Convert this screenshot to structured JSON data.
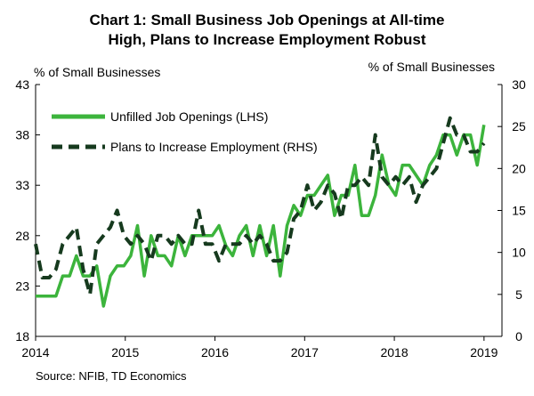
{
  "chart_data": {
    "type": "line",
    "title_lines": [
      "Chart 1: Small Business Job Openings at All-time",
      "High, Plans to Increase Employment Robust"
    ],
    "ylabel_left": "% of Small Businesses",
    "ylabel_right": "% of Small Businesses",
    "source": "Source: NFIB, TD Economics",
    "xlim": [
      2014,
      2019.2
    ],
    "ylim_left": [
      18,
      43
    ],
    "ylim_right": [
      0,
      30
    ],
    "x_ticks": [
      "2014",
      "2015",
      "2016",
      "2017",
      "2018",
      "2019"
    ],
    "y_ticks_left": [
      "18",
      "23",
      "28",
      "33",
      "38",
      "43"
    ],
    "y_ticks_right": [
      "0",
      "5",
      "10",
      "15",
      "20",
      "25",
      "30"
    ],
    "legend": {
      "placement": "top-left",
      "entries": [
        "Unfilled Job Openings (LHS)",
        "Plans to Increase Employment (RHS)"
      ]
    },
    "colors": {
      "job_openings": "#3cb43c",
      "plans": "#163a1e",
      "axis": "#000000"
    },
    "series": [
      {
        "name": "Unfilled Job Openings (LHS)",
        "axis": "left",
        "style": "solid",
        "values": [
          22,
          22,
          22,
          22,
          24,
          24,
          26,
          24,
          24,
          25,
          21,
          24,
          25,
          25,
          26,
          29,
          24,
          28,
          26,
          26,
          25,
          28,
          26,
          28,
          28,
          28,
          28,
          29,
          27,
          26,
          28,
          29,
          26,
          29,
          26,
          29,
          24,
          29,
          31,
          30,
          32,
          32,
          33,
          34,
          30,
          32,
          32,
          35,
          30,
          30,
          32,
          36,
          33,
          32,
          35,
          35,
          34,
          33,
          35,
          36,
          38,
          38,
          36,
          38,
          38,
          35,
          39
        ]
      },
      {
        "name": "Plans to Increase Employment (RHS)",
        "axis": "right",
        "style": "dashed",
        "values": [
          11,
          7,
          7,
          8,
          11,
          12,
          13,
          8,
          5,
          11,
          12,
          13,
          15,
          12,
          11,
          12,
          11,
          9,
          12,
          12,
          11,
          12,
          11,
          11,
          15,
          11,
          11,
          9,
          11,
          11,
          11,
          12,
          11,
          12,
          11,
          9,
          9,
          10,
          14,
          15,
          18,
          15,
          16,
          18,
          17,
          14,
          18,
          18,
          19,
          18,
          24,
          19,
          18,
          19,
          18,
          19,
          16,
          18,
          19,
          20,
          23,
          26,
          24,
          24,
          22,
          22,
          23
        ]
      }
    ]
  }
}
